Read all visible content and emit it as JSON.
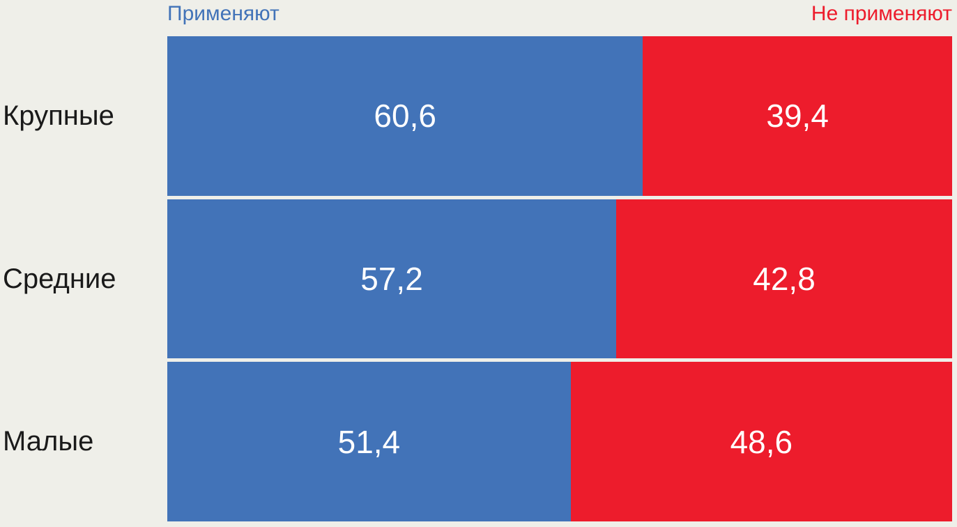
{
  "page": {
    "background": "#efefe9"
  },
  "legend": {
    "apply_label": "Применяют",
    "not_apply_label": "Не применяют",
    "position": "top"
  },
  "chart_data": {
    "type": "bar",
    "orientation": "horizontal",
    "stacked": true,
    "unit": "percent",
    "title": "",
    "xlabel": "",
    "ylabel": "",
    "xlim": [
      0,
      100
    ],
    "grid": false,
    "legend_position": "top",
    "value_label_color": "#ffffff",
    "categories": [
      "Крупные",
      "Средние",
      "Малые"
    ],
    "series": [
      {
        "name": "Применяют",
        "color": "#4273b8",
        "values": [
          60.6,
          57.2,
          51.4
        ]
      },
      {
        "name": "Не применяют",
        "color": "#ed1c2c",
        "values": [
          39.4,
          42.8,
          48.6
        ]
      }
    ],
    "colors": {
      "apply": "#4273b8",
      "not_apply": "#ed1c2c"
    },
    "rows": [
      {
        "category": "Крупные",
        "apply": 60.6,
        "apply_label": "60,6",
        "not_apply": 39.4,
        "not_apply_label": "39,4"
      },
      {
        "category": "Средние",
        "apply": 57.2,
        "apply_label": "57,2",
        "not_apply": 42.8,
        "not_apply_label": "42,8"
      },
      {
        "category": "Малые",
        "apply": 51.4,
        "apply_label": "51,4",
        "not_apply": 48.6,
        "not_apply_label": "48,6"
      }
    ]
  }
}
